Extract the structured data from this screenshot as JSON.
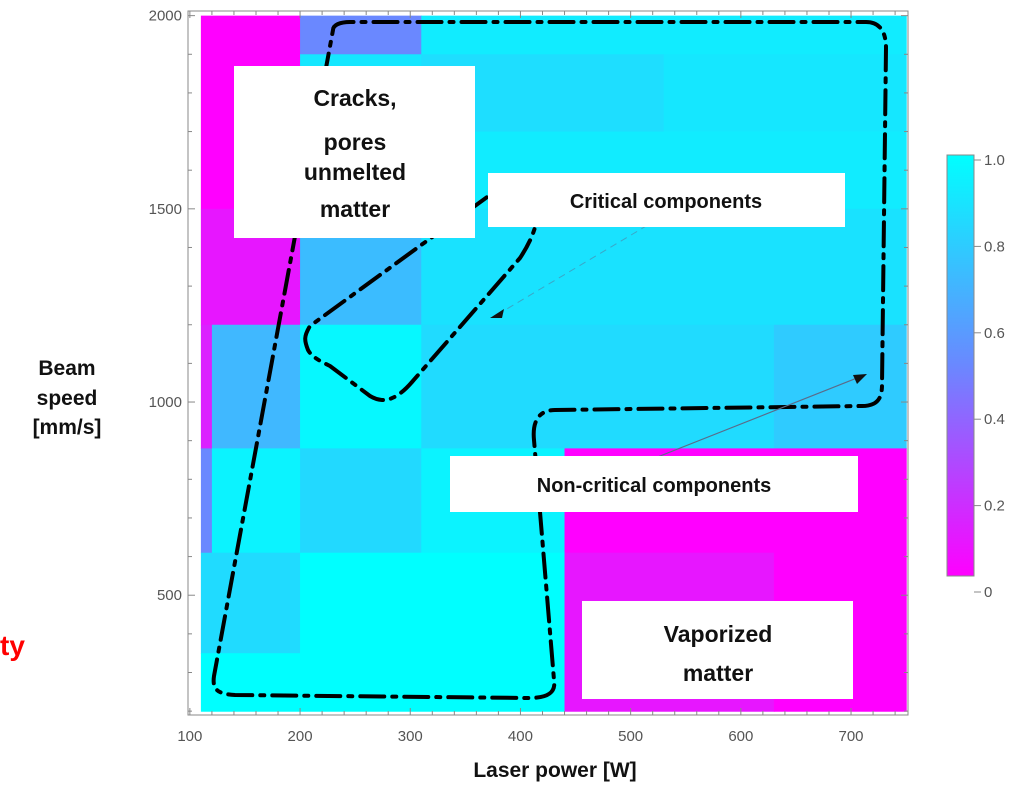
{
  "chart_data": {
    "type": "heatmap",
    "xlabel": "Laser power [W]",
    "ylabel_lines": [
      "Beam",
      "speed",
      "[mm/s]"
    ],
    "xlim": [
      100,
      750
    ],
    "ylim": [
      200,
      2000
    ],
    "x_ticks": [
      100,
      200,
      300,
      400,
      500,
      600,
      700
    ],
    "y_ticks": [
      500,
      1000,
      1500,
      2000
    ],
    "x_tick_labels": [
      "100",
      "200",
      "300",
      "400",
      "500",
      "600",
      "700"
    ],
    "y_tick_labels": [
      "500",
      "1000",
      "1500",
      "2000"
    ],
    "colorbar": {
      "range": [
        0,
        1
      ],
      "ticks": [
        0,
        0.2,
        0.4,
        0.6,
        0.8,
        1.0
      ],
      "tick_labels": [
        "0",
        "0.2",
        "0.4",
        "0.6",
        "0.8",
        "1.0"
      ],
      "low_color": "#ff00ff",
      "mid_color": "#6a88ff",
      "high_color": "#00ffff"
    },
    "cells": [
      {
        "x0": 110,
        "x1": 200,
        "y0": 1500,
        "y1": 2000,
        "value": 0.0
      },
      {
        "x0": 200,
        "x1": 310,
        "y0": 1900,
        "y1": 2000,
        "value": 0.5
      },
      {
        "x0": 310,
        "x1": 750,
        "y0": 1900,
        "y1": 2000,
        "value": 0.92
      },
      {
        "x0": 200,
        "x1": 310,
        "y0": 1500,
        "y1": 1900,
        "value": 0.9
      },
      {
        "x0": 310,
        "x1": 530,
        "y0": 1700,
        "y1": 1900,
        "value": 0.86
      },
      {
        "x0": 530,
        "x1": 750,
        "y0": 1700,
        "y1": 1900,
        "value": 0.9
      },
      {
        "x0": 310,
        "x1": 750,
        "y0": 1500,
        "y1": 1700,
        "value": 0.92
      },
      {
        "x0": 110,
        "x1": 200,
        "y0": 1200,
        "y1": 1500,
        "value": 0.08
      },
      {
        "x0": 200,
        "x1": 310,
        "y0": 1200,
        "y1": 1500,
        "value": 0.72
      },
      {
        "x0": 310,
        "x1": 750,
        "y0": 1200,
        "y1": 1500,
        "value": 0.88
      },
      {
        "x0": 110,
        "x1": 120,
        "y0": 880,
        "y1": 1200,
        "value": 0.12
      },
      {
        "x0": 120,
        "x1": 200,
        "y0": 880,
        "y1": 1200,
        "value": 0.7
      },
      {
        "x0": 200,
        "x1": 310,
        "y0": 880,
        "y1": 1200,
        "value": 0.97
      },
      {
        "x0": 310,
        "x1": 630,
        "y0": 880,
        "y1": 1200,
        "value": 0.85
      },
      {
        "x0": 630,
        "x1": 750,
        "y0": 880,
        "y1": 1200,
        "value": 0.78
      },
      {
        "x0": 110,
        "x1": 120,
        "y0": 610,
        "y1": 880,
        "value": 0.5
      },
      {
        "x0": 120,
        "x1": 200,
        "y0": 610,
        "y1": 880,
        "value": 0.95
      },
      {
        "x0": 200,
        "x1": 310,
        "y0": 610,
        "y1": 880,
        "value": 0.84
      },
      {
        "x0": 310,
        "x1": 440,
        "y0": 610,
        "y1": 880,
        "value": 0.95
      },
      {
        "x0": 440,
        "x1": 750,
        "y0": 610,
        "y1": 880,
        "value": 0.0
      },
      {
        "x0": 110,
        "x1": 200,
        "y0": 350,
        "y1": 610,
        "value": 0.85
      },
      {
        "x0": 200,
        "x1": 440,
        "y0": 200,
        "y1": 610,
        "value": 1.0
      },
      {
        "x0": 110,
        "x1": 200,
        "y0": 200,
        "y1": 350,
        "value": 1.0
      },
      {
        "x0": 440,
        "x1": 630,
        "y0": 200,
        "y1": 610,
        "value": 0.08
      },
      {
        "x0": 630,
        "x1": 750,
        "y0": 200,
        "y1": 610,
        "value": 0.0
      }
    ],
    "annotations": [
      {
        "name": "cracks-pores-label",
        "lines": [
          "Cracks,",
          "pores",
          "unmelted",
          "matter"
        ]
      },
      {
        "name": "critical-components-label",
        "lines": [
          "Critical components"
        ]
      },
      {
        "name": "non-critical-components-label",
        "lines": [
          "Non-critical components"
        ]
      },
      {
        "name": "vaporized-matter-label",
        "lines": [
          "Vaporized",
          "matter"
        ]
      }
    ],
    "partial_left_text": "ty",
    "partial_left_text_color": "#ff0000"
  }
}
